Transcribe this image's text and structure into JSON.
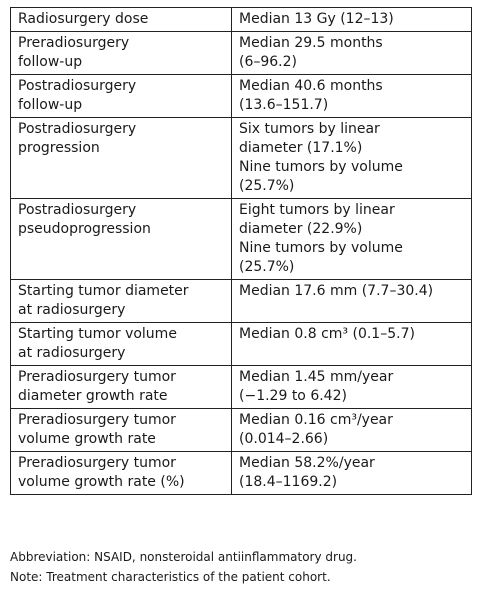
{
  "table": {
    "rows": [
      {
        "label": [
          "Radiosurgery dose"
        ],
        "value": [
          "Median 13 Gy (12–13)"
        ]
      },
      {
        "label": [
          "Preradiosurgery",
          "follow-up"
        ],
        "value": [
          "Median 29.5 months",
          "(6–96.2)"
        ]
      },
      {
        "label": [
          "Postradiosurgery",
          "follow-up"
        ],
        "value": [
          "Median 40.6 months",
          "(13.6–151.7)"
        ]
      },
      {
        "label": [
          "Postradiosurgery",
          "progression"
        ],
        "value": [
          "Six tumors by linear",
          "diameter (17.1%)",
          "Nine tumors by volume",
          "(25.7%)"
        ]
      },
      {
        "label": [
          "Postradiosurgery",
          "pseudoprogression"
        ],
        "value": [
          "Eight tumors by linear",
          "diameter (22.9%)",
          "Nine tumors by volume",
          "(25.7%)"
        ]
      },
      {
        "label": [
          "Starting tumor diameter",
          "at radiosurgery"
        ],
        "value": [
          "Median 17.6 mm (7.7–30.4)"
        ]
      },
      {
        "label": [
          "Starting tumor volume",
          "at radiosurgery"
        ],
        "value": [
          "Median 0.8 cm³ (0.1–5.7)"
        ]
      },
      {
        "label": [
          "Preradiosurgery tumor",
          "diameter growth rate"
        ],
        "value": [
          "Median 1.45 mm/year",
          "(−1.29 to 6.42)"
        ]
      },
      {
        "label": [
          "Preradiosurgery tumor",
          "volume growth rate"
        ],
        "value": [
          "Median 0.16 cm³/year",
          "(0.014–2.66)"
        ]
      },
      {
        "label": [
          "Preradiosurgery tumor",
          "volume growth rate (%)"
        ],
        "value": [
          "Median 58.2%/year",
          "(18.4–1169.2)"
        ]
      }
    ]
  },
  "notes": {
    "abbreviation": "Abbreviation: NSAID, nonsteroidal antiinflammatory drug.",
    "note": "Note: Treatment characteristics of the patient cohort."
  }
}
